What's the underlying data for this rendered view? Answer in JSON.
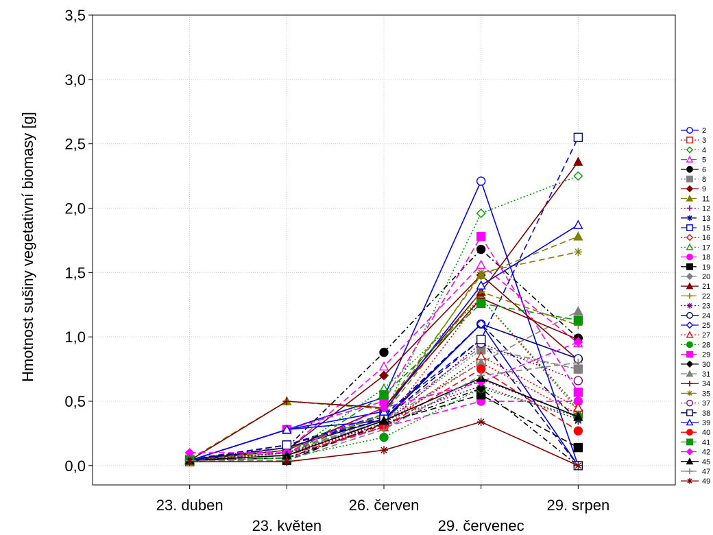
{
  "chart_data": {
    "type": "line",
    "ylabel": "Hmotnost sušiny vegetativní biomasy [g]",
    "xlabel": "",
    "categories": [
      "23. duben",
      "23. květen",
      "26. červen",
      "29. červenec",
      "29. srpen"
    ],
    "yticks": [
      "0,0",
      "0,5",
      "1,0",
      "1,5",
      "2,0",
      "2,5",
      "3,0",
      "3,5"
    ],
    "ylim": [
      -0.15,
      3.5
    ],
    "grid": true,
    "legend_position": "right",
    "series": [
      {
        "name": "2",
        "color": "#0000ff",
        "marker": "circle-open",
        "dash": "solid",
        "values": [
          0.04,
          0.28,
          0.53,
          2.21,
          0.0
        ]
      },
      {
        "name": "3",
        "color": "#ff0000",
        "marker": "square-open",
        "dash": "dot",
        "values": [
          0.03,
          0.1,
          0.33,
          0.8,
          0.4
        ]
      },
      {
        "name": "4",
        "color": "#009900",
        "marker": "diamond-open",
        "dash": "dot",
        "values": [
          0.05,
          0.12,
          0.4,
          1.96,
          2.25
        ]
      },
      {
        "name": "5",
        "color": "#ff00ff",
        "marker": "triangle-open",
        "dash": "dash",
        "values": [
          0.05,
          0.12,
          0.77,
          1.56,
          0.95
        ]
      },
      {
        "name": "6",
        "color": "#000000",
        "marker": "circle",
        "dash": "dashdot",
        "values": [
          0.05,
          0.14,
          0.88,
          1.68,
          0.99
        ]
      },
      {
        "name": "8",
        "color": "#808080",
        "marker": "square",
        "dash": "dot",
        "values": [
          0.05,
          0.1,
          0.35,
          0.9,
          0.75
        ]
      },
      {
        "name": "9",
        "color": "#800000",
        "marker": "diamond",
        "dash": "solid",
        "values": [
          0.04,
          0.12,
          0.7,
          1.48,
          0.82
        ]
      },
      {
        "name": "11",
        "color": "#808000",
        "marker": "triangle",
        "dash": "dash",
        "values": [
          0.05,
          0.5,
          0.44,
          1.48,
          1.78
        ]
      },
      {
        "name": "12",
        "color": "#800080",
        "marker": "plus",
        "dash": "dot",
        "values": [
          0.04,
          0.08,
          0.3,
          0.67,
          0.38
        ]
      },
      {
        "name": "13",
        "color": "#000080",
        "marker": "asterisk",
        "dash": "dash",
        "values": [
          0.05,
          0.16,
          0.38,
          1.1,
          0.35
        ]
      },
      {
        "name": "15",
        "color": "#0000ff",
        "marker": "square-open",
        "dash": "dash",
        "values": [
          0.04,
          0.16,
          0.4,
          0.98,
          2.55
        ]
      },
      {
        "name": "16",
        "color": "#ff0000",
        "marker": "diamond-open",
        "dash": "dot",
        "values": [
          0.04,
          0.1,
          0.32,
          1.3,
          0.43
        ]
      },
      {
        "name": "17",
        "color": "#009900",
        "marker": "triangle-open",
        "dash": "dot",
        "values": [
          0.04,
          0.08,
          0.6,
          1.3,
          0.45
        ]
      },
      {
        "name": "18",
        "color": "#ff00ff",
        "marker": "circle",
        "dash": "dash",
        "values": [
          0.04,
          0.06,
          0.3,
          0.5,
          0.5
        ]
      },
      {
        "name": "19",
        "color": "#000000",
        "marker": "square",
        "dash": "dash",
        "values": [
          0.04,
          0.04,
          0.33,
          0.55,
          0.14
        ]
      },
      {
        "name": "20",
        "color": "#808080",
        "marker": "diamond",
        "dash": "dash",
        "values": [
          0.05,
          0.1,
          0.37,
          0.92,
          0.75
        ]
      },
      {
        "name": "21",
        "color": "#800000",
        "marker": "triangle",
        "dash": "solid",
        "values": [
          0.04,
          0.12,
          0.45,
          1.35,
          2.36
        ]
      },
      {
        "name": "22",
        "color": "#808000",
        "marker": "plus",
        "dash": "dash",
        "values": [
          0.04,
          0.1,
          0.4,
          1.35,
          1.09
        ]
      },
      {
        "name": "23",
        "color": "#800080",
        "marker": "asterisk",
        "dash": "dot",
        "values": [
          0.04,
          0.08,
          0.35,
          0.62,
          0.36
        ]
      },
      {
        "name": "24",
        "color": "#000080",
        "marker": "circle-open",
        "dash": "solid",
        "values": [
          0.04,
          0.14,
          0.36,
          1.1,
          0.83
        ]
      },
      {
        "name": "25",
        "color": "#0000ff",
        "marker": "diamond-open",
        "dash": "solid",
        "values": [
          0.04,
          0.28,
          0.35,
          1.1,
          0.0
        ]
      },
      {
        "name": "27",
        "color": "#ff0000",
        "marker": "triangle-open",
        "dash": "dot",
        "values": [
          0.04,
          0.1,
          0.3,
          0.85,
          0.45
        ]
      },
      {
        "name": "28",
        "color": "#009900",
        "marker": "circle",
        "dash": "dot",
        "values": [
          0.04,
          0.06,
          0.22,
          0.6,
          0.38
        ]
      },
      {
        "name": "29",
        "color": "#ff00ff",
        "marker": "square",
        "dash": "dash",
        "values": [
          0.04,
          0.28,
          0.5,
          1.78,
          0.57
        ]
      },
      {
        "name": "30",
        "color": "#000000",
        "marker": "diamond",
        "dash": "dashdot",
        "values": [
          0.04,
          0.06,
          0.32,
          0.6,
          0.0
        ]
      },
      {
        "name": "31",
        "color": "#808080",
        "marker": "triangle",
        "dash": "dash",
        "values": [
          0.04,
          0.1,
          0.35,
          0.8,
          1.2
        ]
      },
      {
        "name": "34",
        "color": "#800000",
        "marker": "plus",
        "dash": "solid",
        "values": [
          0.04,
          0.5,
          0.45,
          1.3,
          0.98
        ]
      },
      {
        "name": "35",
        "color": "#808000",
        "marker": "asterisk",
        "dash": "dash",
        "values": [
          0.04,
          0.12,
          0.4,
          1.5,
          1.66
        ]
      },
      {
        "name": "37",
        "color": "#800080",
        "marker": "circle-open",
        "dash": "dot",
        "values": [
          0.04,
          0.1,
          0.32,
          0.95,
          0.66
        ]
      },
      {
        "name": "38",
        "color": "#000080",
        "marker": "square-open",
        "dash": "dash",
        "values": [
          0.04,
          0.16,
          0.36,
          0.98,
          0.0
        ]
      },
      {
        "name": "39",
        "color": "#0000ff",
        "marker": "triangle-open",
        "dash": "solid",
        "values": [
          0.04,
          0.28,
          0.42,
          1.4,
          1.87
        ]
      },
      {
        "name": "40",
        "color": "#ff0000",
        "marker": "circle",
        "dash": "dash",
        "values": [
          0.04,
          0.08,
          0.3,
          0.75,
          0.27
        ]
      },
      {
        "name": "41",
        "color": "#009900",
        "marker": "square",
        "dash": "dash",
        "values": [
          0.04,
          0.06,
          0.55,
          1.26,
          1.13
        ]
      },
      {
        "name": "42",
        "color": "#ff00ff",
        "marker": "diamond",
        "dash": "dash",
        "values": [
          0.1,
          0.1,
          0.45,
          0.65,
          0.96
        ]
      },
      {
        "name": "45",
        "color": "#000000",
        "marker": "triangle",
        "dash": "solid",
        "values": [
          0.04,
          0.08,
          0.35,
          0.68,
          0.38
        ]
      },
      {
        "name": "47",
        "color": "#808080",
        "marker": "plus",
        "dash": "dash",
        "values": [
          0.04,
          0.04,
          0.28,
          0.7,
          0.8
        ]
      },
      {
        "name": "49",
        "color": "#800000",
        "marker": "asterisk",
        "dash": "solid",
        "values": [
          0.03,
          0.03,
          0.12,
          0.34,
          0.0
        ]
      }
    ]
  }
}
